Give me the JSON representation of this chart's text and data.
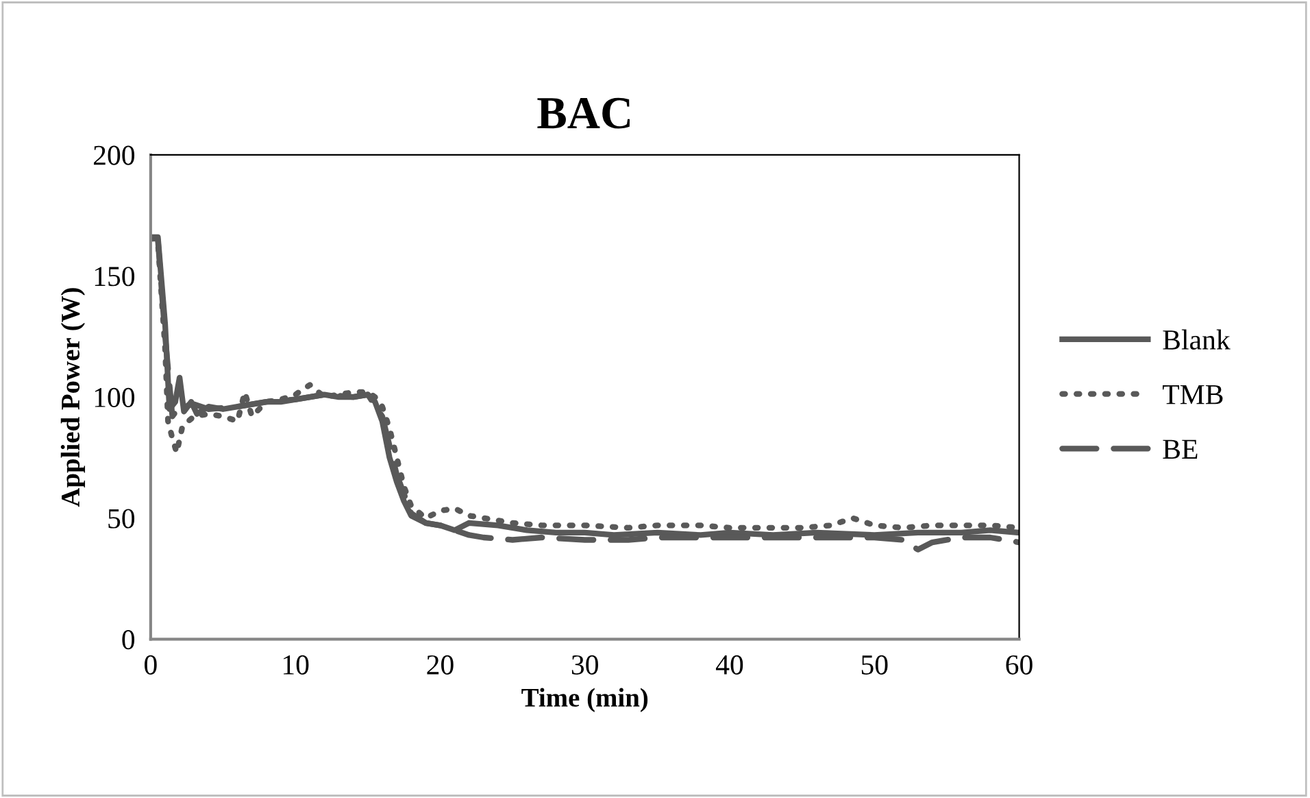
{
  "chart_data": {
    "type": "line",
    "title": "BAC",
    "xlabel": "Time (min)",
    "ylabel": "Applied Power (W)",
    "xlim": [
      0,
      60
    ],
    "xticks": [
      0,
      10,
      20,
      30,
      40,
      50,
      60
    ],
    "ylim": [
      0,
      200
    ],
    "yticks": [
      0,
      50,
      100,
      150,
      200
    ],
    "grid": false,
    "legend": "right",
    "marker": "none",
    "series": [
      {
        "name": "Blank",
        "color": "#595959",
        "line_style": "solid",
        "x": [
          0,
          0.5,
          1,
          1.3,
          1.7,
          2,
          2.3,
          2.8,
          3.2,
          4,
          5,
          6,
          7,
          8,
          9,
          10,
          11,
          12,
          13,
          14,
          15,
          15.5,
          16,
          16.5,
          17,
          17.5,
          18,
          19,
          20,
          21,
          22,
          24,
          26,
          28,
          30,
          32,
          35,
          38,
          40,
          43,
          46,
          50,
          53,
          56,
          58,
          60
        ],
        "values": [
          166,
          166,
          130,
          95,
          98,
          108,
          94,
          98,
          93,
          96,
          95,
          96,
          97,
          98,
          98,
          99,
          100,
          101,
          100,
          100,
          101,
          98,
          90,
          75,
          65,
          57,
          51,
          48,
          47,
          45,
          48,
          47,
          45,
          44,
          44,
          43,
          44,
          43,
          44,
          43,
          44,
          43,
          44,
          44,
          45,
          44
        ]
      },
      {
        "name": "TMB",
        "color": "#595959",
        "line_style": "dotted",
        "x": [
          0,
          0.5,
          1,
          1.2,
          1.5,
          1.8,
          2.2,
          3,
          4,
          5,
          6,
          6.5,
          7,
          8,
          9,
          10,
          11,
          12,
          13,
          14,
          15,
          15.5,
          16,
          16.5,
          17,
          17.5,
          18,
          19,
          20,
          21,
          22,
          23,
          25,
          27,
          30,
          33,
          35,
          38,
          40,
          43,
          45,
          47,
          48.5,
          50,
          52,
          54,
          56,
          58,
          60
        ],
        "values": [
          166,
          164,
          120,
          90,
          83,
          77,
          88,
          92,
          93,
          92,
          90,
          102,
          92,
          98,
          99,
          101,
          105,
          100,
          101,
          102,
          102,
          100,
          96,
          87,
          75,
          63,
          55,
          50,
          53,
          54,
          51,
          50,
          48,
          47,
          47,
          46,
          47,
          47,
          46,
          46,
          46,
          47,
          50,
          47,
          46,
          47,
          47,
          47,
          46
        ]
      },
      {
        "name": "BE",
        "color": "#595959",
        "line_style": "dashed",
        "x": [
          0,
          0.5,
          1,
          1.5,
          2,
          3,
          4,
          6,
          8,
          10,
          12,
          14,
          15,
          16,
          17,
          18,
          19,
          20,
          22,
          23,
          25,
          27,
          30,
          33,
          35,
          38,
          40,
          43,
          46,
          50,
          52,
          53,
          54,
          56,
          58,
          60
        ],
        "values": [
          166,
          165,
          125,
          92,
          96,
          97,
          95,
          96,
          98,
          99,
          101,
          100,
          101,
          92,
          68,
          52,
          48,
          47,
          43,
          42,
          41,
          42,
          41,
          41,
          42,
          42,
          42,
          42,
          42,
          42,
          41,
          37,
          40,
          42,
          42,
          40
        ]
      }
    ]
  }
}
